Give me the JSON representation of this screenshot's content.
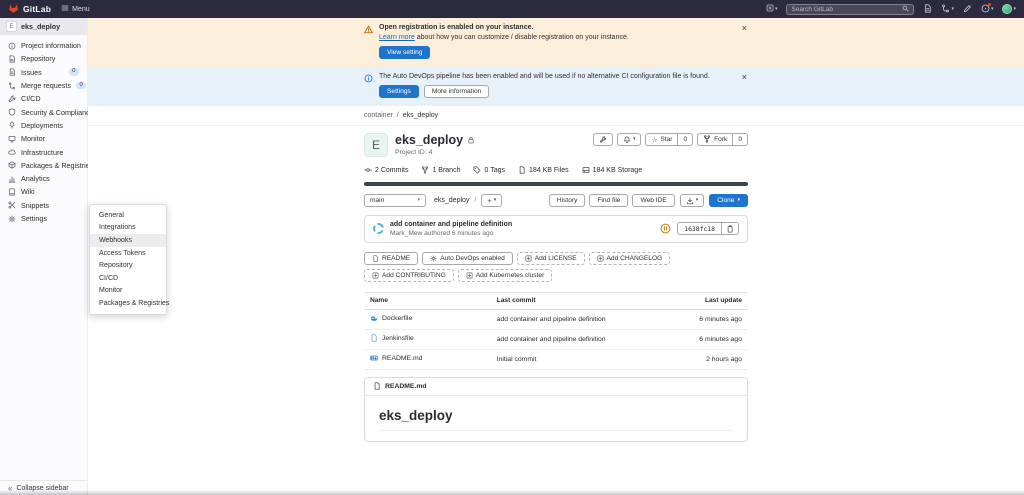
{
  "colors": {
    "accent": "#1f75cb",
    "link": "#1068bf",
    "warning_bg": "#fbeedb",
    "info_bg": "#e7f1fa",
    "language_bar": "#36454f",
    "navbar_bg": "#2b2a3e"
  },
  "glyphs": {
    "close": "×",
    "chevron": "▾",
    "plus": "+",
    "star": "☆",
    "slash": "/",
    "crumb_sep": "/",
    "collapse": "«"
  },
  "navbar": {
    "logo_label": "GitLab",
    "menu_label": "Menu",
    "search_placeholder": "Search GitLab"
  },
  "sidebar": {
    "project_label": "eks_deploy",
    "project_initial": "E",
    "items": [
      {
        "icon": "info",
        "label": "Project information"
      },
      {
        "icon": "repo",
        "label": "Repository"
      },
      {
        "icon": "issues",
        "label": "Issues",
        "badge": "0"
      },
      {
        "icon": "merge",
        "label": "Merge requests",
        "badge": "0"
      },
      {
        "icon": "ci",
        "label": "CI/CD"
      },
      {
        "icon": "shield",
        "label": "Security & Compliance"
      },
      {
        "icon": "rocket",
        "label": "Deployments"
      },
      {
        "icon": "monitor",
        "label": "Monitor"
      },
      {
        "icon": "cloud",
        "label": "Infrastructure"
      },
      {
        "icon": "package",
        "label": "Packages & Registries"
      },
      {
        "icon": "chart",
        "label": "Analytics"
      },
      {
        "icon": "book",
        "label": "Wiki"
      },
      {
        "icon": "scissors",
        "label": "Snippets"
      },
      {
        "icon": "gear",
        "label": "Settings"
      }
    ],
    "collapse_label": "Collapse sidebar"
  },
  "settings_flyout": {
    "active_index": 2,
    "items": [
      "General",
      "Integrations",
      "Webhooks",
      "Access Tokens",
      "Repository",
      "CI/CD",
      "Monitor",
      "Packages & Registries"
    ]
  },
  "banners": [
    {
      "title": "Open registration is enabled on your instance.",
      "link_label": "Learn more",
      "text": " about how you can customize / disable registration on your instance.",
      "button_label": "View setting"
    },
    {
      "text": "The Auto DevOps pipeline has been enabled and will be used if no alternative CI configuration file is found.",
      "primary_button": "Settings",
      "secondary_button": "More information"
    }
  ],
  "breadcrumb": [
    "container",
    "eks_deploy"
  ],
  "project": {
    "title": "eks_deploy",
    "initial": "E",
    "id_label": "Project ID: 4",
    "star_label": "Star",
    "star_count": "0",
    "fork_label": "Fork",
    "fork_count": "0",
    "stats": [
      {
        "icon": "commit",
        "label": "2 Commits"
      },
      {
        "icon": "branch",
        "label": "1 Branch"
      },
      {
        "icon": "tag",
        "label": "0 Tags"
      },
      {
        "icon": "doc",
        "label": "184 KB Files"
      },
      {
        "icon": "disk",
        "label": "184 KB Storage"
      }
    ]
  },
  "tree": {
    "branch": "main",
    "path": "eks_deploy",
    "actions": [
      "History",
      "Find file",
      "Web IDE"
    ],
    "clone_label": "Clone"
  },
  "commit": {
    "title": "add container and pipeline definition",
    "meta": "Mark_Mew authored 6 minutes ago",
    "hash": "1638fc18"
  },
  "project_buttons": [
    {
      "icon": "doc",
      "label": "README",
      "style": "solid"
    },
    {
      "icon": "gear",
      "label": "Auto DevOps enabled",
      "style": "solid"
    },
    {
      "icon": "plus-square",
      "label": "Add LICENSE",
      "style": "dashed"
    },
    {
      "icon": "plus-square",
      "label": "Add CHANGELOG",
      "style": "dashed"
    },
    {
      "icon": "plus-square",
      "label": "Add CONTRIBUTING",
      "style": "dashed"
    },
    {
      "icon": "plus-square",
      "label": "Add Kubernetes cluster",
      "style": "dashed"
    }
  ],
  "files": {
    "columns": [
      "Name",
      "Last commit",
      "Last update"
    ],
    "rows": [
      {
        "icon": "docker",
        "name": "Dockerfile",
        "commit": "add container and pipeline definition",
        "updated": "6 minutes ago"
      },
      {
        "icon": "file",
        "name": "Jenkinsfile",
        "commit": "add container and pipeline definition",
        "updated": "6 minutes ago"
      },
      {
        "icon": "markdown",
        "name": "README.md",
        "commit": "Initial commit",
        "updated": "2 hours ago"
      }
    ]
  },
  "readme": {
    "filename": "README.md",
    "heading": "eks_deploy"
  }
}
